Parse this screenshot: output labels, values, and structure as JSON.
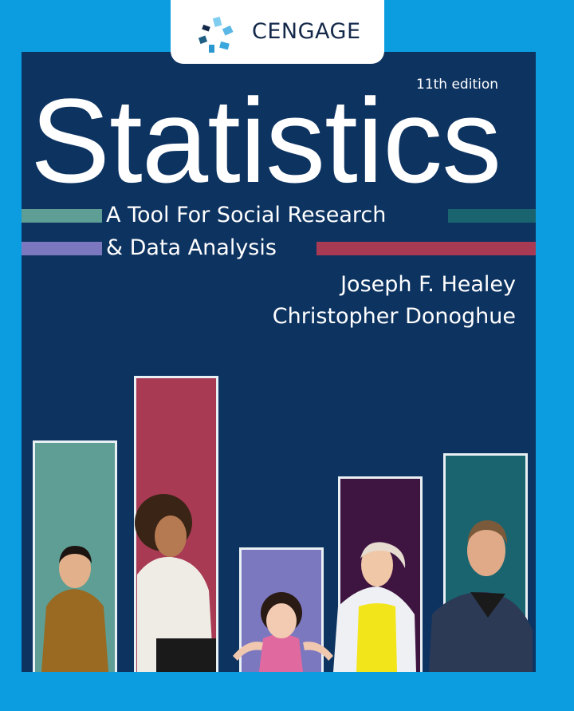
{
  "publisher": {
    "name": "CENGAGE"
  },
  "book": {
    "title": "Statistics",
    "edition": "11th edition",
    "subtitle_line1": "A Tool For Social Research",
    "subtitle_line2": "& Data Analysis",
    "authors": [
      "Joseph F. Healey",
      "Christopher Donoghue"
    ]
  },
  "colors": {
    "background": "#0b9de0",
    "panel": "#0d3361",
    "teal": "#5e9e94",
    "crimson": "#a83a53",
    "lavender": "#7b78c0",
    "plum": "#3e1440",
    "dark_teal": "#1a6470"
  }
}
